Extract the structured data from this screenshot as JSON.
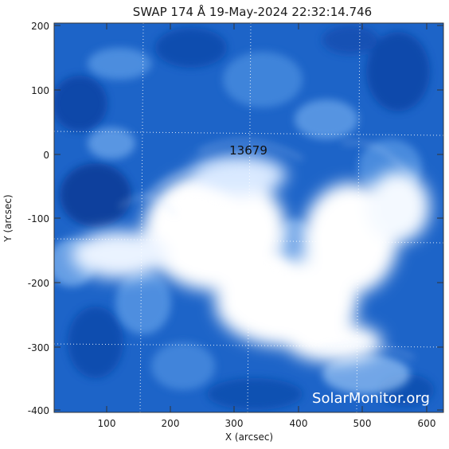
{
  "title": "SWAP 174 Å 19-May-2024 22:32:14.746",
  "axes": {
    "x": {
      "label": "X (arcsec)",
      "ticks": [
        "100",
        "200",
        "300",
        "400",
        "500",
        "600"
      ]
    },
    "y": {
      "label": "Y (arcsec)",
      "ticks": [
        "200",
        "100",
        "0",
        "-100",
        "-200",
        "-300",
        "-400"
      ]
    }
  },
  "region_label": "13679",
  "watermark": "SolarMonitor.org",
  "colors": {
    "background_blue": "#1a5fc4",
    "bright_white": "#ffffff",
    "frame": "#333333"
  }
}
